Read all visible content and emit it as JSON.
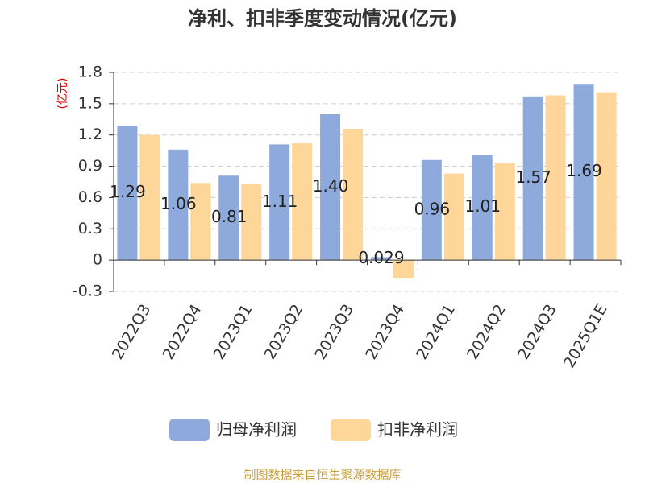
{
  "chart_data": {
    "type": "bar",
    "title": "净利、扣非季度变动情况(亿元)",
    "y_label": "(亿元)",
    "categories": [
      "2022Q3",
      "2022Q4",
      "2023Q1",
      "2023Q2",
      "2023Q3",
      "2023Q4",
      "2024Q1",
      "2024Q2",
      "2024Q3",
      "2025Q1E"
    ],
    "series": [
      {
        "name": "归母净利润",
        "color": "#8eaadc",
        "values": [
          1.29,
          1.06,
          0.81,
          1.11,
          1.4,
          0.029,
          0.96,
          1.01,
          1.57,
          1.69
        ],
        "value_labels": [
          "1.29",
          "1.06",
          "0.81",
          "1.11",
          "1.40",
          "0.029",
          "0.96",
          "1.01",
          "1.57",
          "1.69"
        ]
      },
      {
        "name": "扣非净利润",
        "color": "#ffd699",
        "values": [
          1.2,
          0.74,
          0.73,
          1.12,
          1.26,
          -0.17,
          0.83,
          0.93,
          1.58,
          1.61
        ]
      }
    ],
    "ylim": [
      -0.3,
      1.8
    ],
    "yticks": [
      -0.3,
      0,
      0.3,
      0.6,
      0.9,
      1.2,
      1.5,
      1.8
    ],
    "grid": true,
    "legend": "bottom",
    "source": "制图数据来自恒生聚源数据库"
  }
}
